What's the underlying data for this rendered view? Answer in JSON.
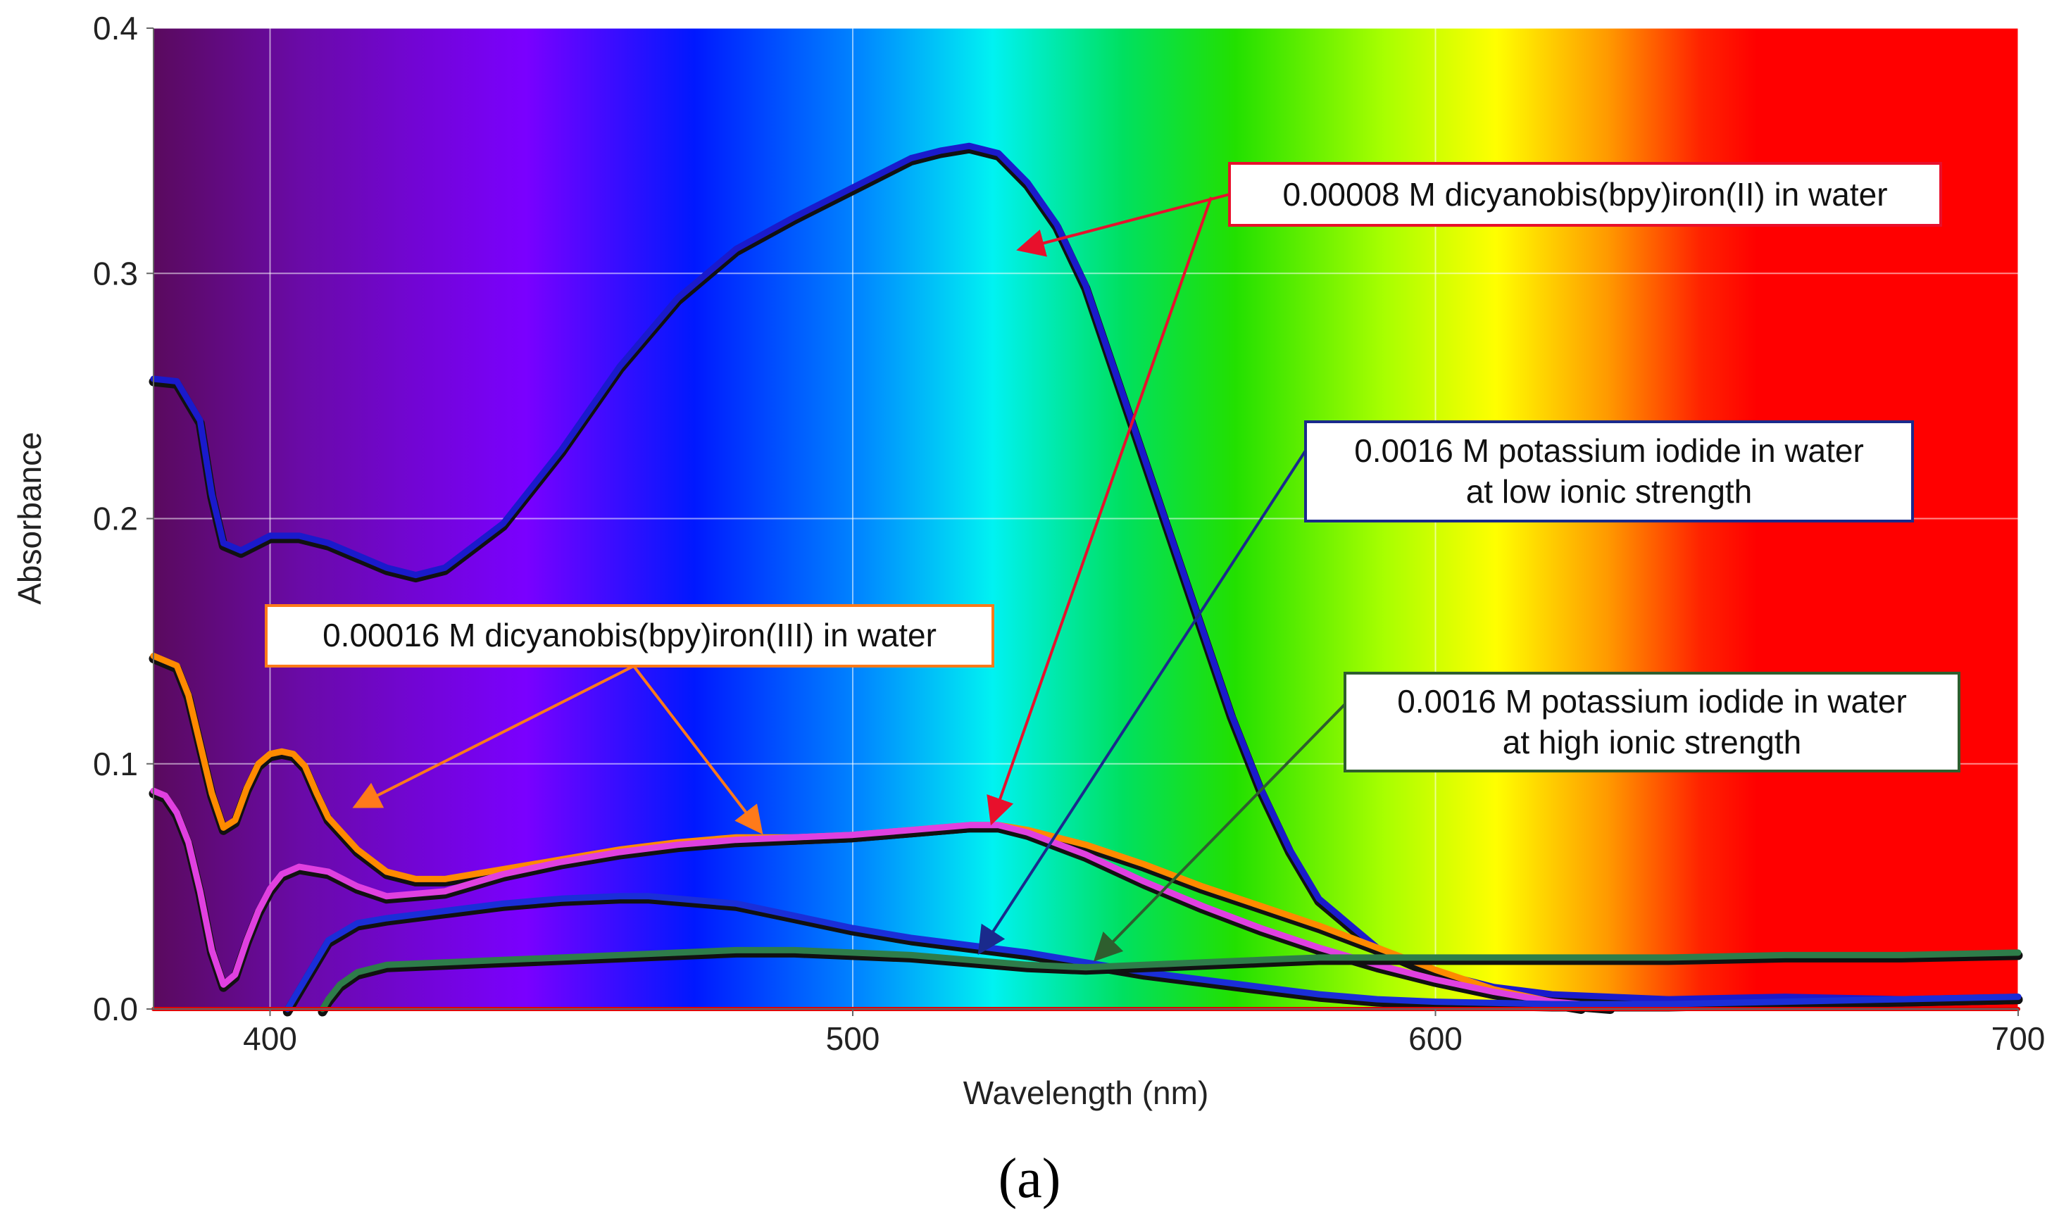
{
  "chart_data": {
    "type": "line",
    "title": "",
    "xlabel": "Wavelength (nm)",
    "ylabel": "Absorbance",
    "xlim": [
      380,
      700
    ],
    "ylim": [
      0.0,
      0.4
    ],
    "x_ticks": [
      {
        "value": 400,
        "label": "400"
      },
      {
        "value": 500,
        "label": "500"
      },
      {
        "value": 600,
        "label": "600"
      },
      {
        "value": 700,
        "label": "700"
      }
    ],
    "y_ticks": [
      {
        "value": 0.0,
        "label": "0.0"
      },
      {
        "value": 0.1,
        "label": "0.1"
      },
      {
        "value": 0.2,
        "label": "0.2"
      },
      {
        "value": 0.3,
        "label": "0.3"
      },
      {
        "value": 0.4,
        "label": "0.4"
      }
    ],
    "grid": true,
    "background": "visible-spectrum gradient (violet at 380 nm to red at 700 nm)",
    "panel_label": "(a)",
    "series": [
      {
        "name": "0.00008 M dicyanobis(bpy)iron(II) in water",
        "color": "#1a1acc",
        "x": [
          380,
          384,
          388,
          390,
          392,
          395,
          400,
          405,
          410,
          415,
          420,
          425,
          430,
          440,
          450,
          460,
          470,
          480,
          490,
          500,
          510,
          515,
          520,
          525,
          530,
          535,
          540,
          545,
          550,
          555,
          560,
          565,
          570,
          575,
          580,
          590,
          600,
          610,
          620,
          640,
          660,
          680,
          700
        ],
        "y": [
          0.257,
          0.256,
          0.24,
          0.21,
          0.19,
          0.187,
          0.193,
          0.193,
          0.19,
          0.185,
          0.18,
          0.177,
          0.18,
          0.198,
          0.228,
          0.262,
          0.29,
          0.31,
          0.323,
          0.335,
          0.347,
          0.35,
          0.352,
          0.349,
          0.337,
          0.32,
          0.295,
          0.26,
          0.225,
          0.19,
          0.155,
          0.12,
          0.09,
          0.065,
          0.045,
          0.025,
          0.015,
          0.009,
          0.006,
          0.004,
          0.005,
          0.004,
          0.005
        ]
      },
      {
        "name": "0.00016 M dicyanobis(bpy)iron(III) in water (orange)",
        "color": "#ff8a00",
        "x": [
          380,
          384,
          386,
          388,
          390,
          392,
          394,
          396,
          398,
          400,
          402,
          404,
          406,
          408,
          410,
          415,
          420,
          425,
          430,
          440,
          450,
          460,
          470,
          480,
          490,
          500,
          510,
          520,
          525,
          530,
          540,
          550,
          560,
          570,
          580,
          590,
          600,
          610,
          620,
          625
        ],
        "y": [
          0.144,
          0.14,
          0.128,
          0.108,
          0.088,
          0.074,
          0.077,
          0.09,
          0.1,
          0.104,
          0.105,
          0.104,
          0.099,
          0.088,
          0.078,
          0.065,
          0.056,
          0.053,
          0.053,
          0.057,
          0.061,
          0.065,
          0.068,
          0.07,
          0.07,
          0.071,
          0.073,
          0.075,
          0.075,
          0.073,
          0.067,
          0.059,
          0.05,
          0.042,
          0.034,
          0.025,
          0.016,
          0.008,
          0.003,
          0.001
        ]
      },
      {
        "name": "0.00016 M dicyanobis(bpy)iron(III) in water (magenta)",
        "color": "#e040e0",
        "x": [
          380,
          382,
          384,
          386,
          388,
          390,
          392,
          394,
          396,
          398,
          400,
          402,
          405,
          410,
          415,
          420,
          430,
          440,
          450,
          460,
          470,
          480,
          490,
          500,
          510,
          520,
          525,
          530,
          540,
          550,
          560,
          570,
          580,
          590,
          600,
          610,
          620,
          630
        ],
        "y": [
          0.089,
          0.087,
          0.08,
          0.068,
          0.048,
          0.024,
          0.01,
          0.014,
          0.028,
          0.04,
          0.049,
          0.055,
          0.058,
          0.056,
          0.05,
          0.046,
          0.048,
          0.055,
          0.06,
          0.064,
          0.067,
          0.069,
          0.07,
          0.071,
          0.073,
          0.075,
          0.075,
          0.072,
          0.063,
          0.052,
          0.042,
          0.033,
          0.025,
          0.018,
          0.012,
          0.007,
          0.003,
          0.001
        ]
      },
      {
        "name": "0.0016 M potassium iodide in water at low ionic strength",
        "color": "#1a2ed8",
        "x": [
          403,
          405,
          408,
          410,
          415,
          420,
          430,
          440,
          450,
          460,
          465,
          470,
          480,
          490,
          500,
          510,
          520,
          530,
          540,
          550,
          560,
          570,
          580,
          590,
          600,
          620,
          640,
          660,
          680,
          700
        ],
        "y": [
          0.0,
          0.008,
          0.02,
          0.028,
          0.035,
          0.037,
          0.04,
          0.043,
          0.045,
          0.046,
          0.046,
          0.045,
          0.043,
          0.038,
          0.033,
          0.029,
          0.026,
          0.023,
          0.019,
          0.015,
          0.012,
          0.009,
          0.006,
          0.004,
          0.003,
          0.002,
          0.002,
          0.003,
          0.004,
          0.005
        ]
      },
      {
        "name": "0.0016 M potassium iodide in water at high ionic strength",
        "color": "#2e7d4a",
        "x": [
          409,
          410,
          412,
          415,
          420,
          430,
          440,
          450,
          460,
          470,
          480,
          490,
          500,
          510,
          520,
          530,
          540,
          550,
          560,
          570,
          580,
          600,
          620,
          640,
          660,
          680,
          700
        ],
        "y": [
          0.0,
          0.004,
          0.01,
          0.015,
          0.018,
          0.019,
          0.02,
          0.021,
          0.022,
          0.023,
          0.024,
          0.024,
          0.023,
          0.022,
          0.02,
          0.018,
          0.017,
          0.018,
          0.019,
          0.02,
          0.021,
          0.021,
          0.021,
          0.021,
          0.022,
          0.022,
          0.023
        ]
      },
      {
        "name": "baseline",
        "color": "#e00000",
        "x": [
          380,
          700
        ],
        "y": [
          0.0,
          0.0
        ]
      }
    ],
    "annotations": [
      {
        "id": "ann-fe2",
        "lines": [
          "0.00008 M dicyanobis(bpy)iron(II) in water"
        ],
        "border_color": "#e8102c",
        "text_color": "#111111",
        "arrow_targets": [
          [
            529,
            0.31
          ],
          [
            524,
            0.077
          ]
        ]
      },
      {
        "id": "ann-ki-low",
        "lines": [
          "0.0016 M potassium iodide in water",
          "at low ionic strength"
        ],
        "border_color": "#1a2a8c",
        "text_color": "#111111",
        "arrow_targets": [
          [
            522,
            0.024
          ]
        ]
      },
      {
        "id": "ann-ki-high",
        "lines": [
          "0.0016 M potassium iodide in water",
          "at high ionic strength"
        ],
        "border_color": "#2e5e2e",
        "text_color": "#111111",
        "arrow_targets": [
          [
            542,
            0.021
          ]
        ]
      },
      {
        "id": "ann-fe3",
        "lines": [
          "0.00016 M dicyanobis(bpy)iron(III) in water"
        ],
        "border_color": "#ff7a1a",
        "text_color": "#111111",
        "arrow_targets": [
          [
            415,
            0.083
          ],
          [
            484,
            0.073
          ]
        ]
      }
    ]
  }
}
